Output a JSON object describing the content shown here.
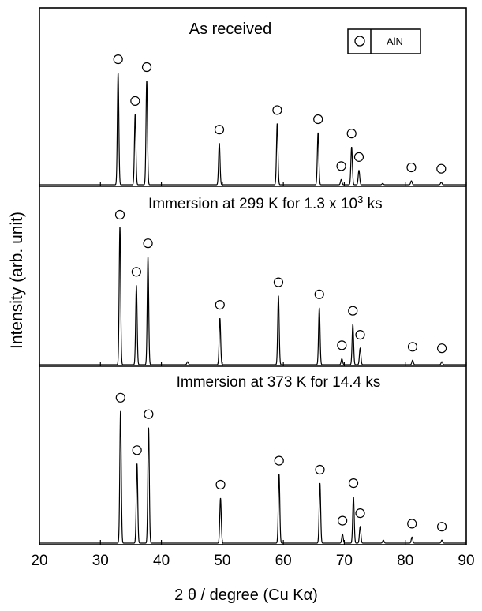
{
  "chart_data": {
    "type": "line",
    "xlabel": "2 θ  / degree (Cu Kα)",
    "ylabel": "Intensity (arb. unit)",
    "xlim": [
      20,
      90
    ],
    "x_ticks": [
      "20",
      "30",
      "40",
      "50",
      "60",
      "70",
      "80",
      "90"
    ],
    "legend": {
      "symbol": "circle",
      "label": "AlN",
      "position": "top-right"
    },
    "marker_symbol": "circle",
    "panels": [
      {
        "title": "As received",
        "peaks": [
          {
            "x": 32.9,
            "y": 0.86
          },
          {
            "x": 35.7,
            "y": 0.54
          },
          {
            "x": 37.6,
            "y": 0.8
          },
          {
            "x": 49.5,
            "y": 0.32
          },
          {
            "x": 59.0,
            "y": 0.47
          },
          {
            "x": 65.7,
            "y": 0.4
          },
          {
            "x": 69.5,
            "y": 0.04
          },
          {
            "x": 71.2,
            "y": 0.29
          },
          {
            "x": 72.4,
            "y": 0.11
          },
          {
            "x": 76.3,
            "y": 0.01
          },
          {
            "x": 81.0,
            "y": 0.03
          },
          {
            "x": 85.9,
            "y": 0.02
          }
        ],
        "markers": [
          32.9,
          35.7,
          37.6,
          49.5,
          59.0,
          65.7,
          69.5,
          71.2,
          72.4,
          81.0,
          85.9
        ]
      },
      {
        "title": "Immersion at 299 K for 1.3 x 10",
        "title_superscript": "3",
        "title_suffix": " ks",
        "peaks": [
          {
            "x": 33.2,
            "y": 0.92
          },
          {
            "x": 35.9,
            "y": 0.53
          },
          {
            "x": 37.8,
            "y": 0.72
          },
          {
            "x": 44.3,
            "y": 0.02
          },
          {
            "x": 49.6,
            "y": 0.31
          },
          {
            "x": 59.2,
            "y": 0.46
          },
          {
            "x": 65.9,
            "y": 0.38
          },
          {
            "x": 69.6,
            "y": 0.04
          },
          {
            "x": 71.4,
            "y": 0.27
          },
          {
            "x": 72.6,
            "y": 0.11
          },
          {
            "x": 81.2,
            "y": 0.03
          },
          {
            "x": 86.0,
            "y": 0.02
          }
        ],
        "markers": [
          33.2,
          35.9,
          37.8,
          49.6,
          59.2,
          65.9,
          69.6,
          71.4,
          72.6,
          81.2,
          86.0
        ]
      },
      {
        "title": "Immersion at 373 K for 14.4 ks",
        "peaks": [
          {
            "x": 33.3,
            "y": 0.88
          },
          {
            "x": 36.0,
            "y": 0.53
          },
          {
            "x": 37.9,
            "y": 0.77
          },
          {
            "x": 49.7,
            "y": 0.3
          },
          {
            "x": 59.3,
            "y": 0.46
          },
          {
            "x": 66.0,
            "y": 0.4
          },
          {
            "x": 69.7,
            "y": 0.06
          },
          {
            "x": 71.5,
            "y": 0.31
          },
          {
            "x": 72.6,
            "y": 0.11
          },
          {
            "x": 76.4,
            "y": 0.02
          },
          {
            "x": 81.1,
            "y": 0.04
          },
          {
            "x": 86.0,
            "y": 0.02
          }
        ],
        "markers": [
          33.3,
          36.0,
          37.9,
          49.7,
          59.3,
          66.0,
          69.7,
          71.5,
          72.6,
          81.1,
          86.0
        ]
      }
    ]
  }
}
